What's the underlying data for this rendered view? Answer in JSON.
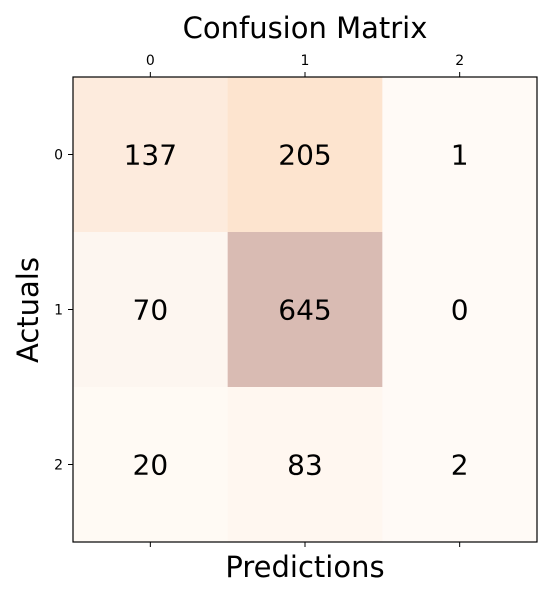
{
  "chart_data": {
    "type": "heatmap",
    "title": "Confusion Matrix",
    "xlabel": "Predictions",
    "ylabel": "Actuals",
    "x_categories": [
      "0",
      "1",
      "2"
    ],
    "y_categories": [
      "0",
      "1",
      "2"
    ],
    "values": [
      [
        137,
        205,
        1
      ],
      [
        70,
        645,
        0
      ],
      [
        20,
        83,
        2
      ]
    ],
    "x_axis_position": "top",
    "grid": false,
    "colormap": "Oranges",
    "alpha": 0.3,
    "cell_colors": [
      [
        "#fdebdd",
        "#fde4cf",
        "#fffaf6"
      ],
      [
        "#fdf6f0",
        "#d9bbb3",
        "#fffaf6"
      ],
      [
        "#fffaf4",
        "#fff7f0",
        "#fffaf6"
      ]
    ]
  }
}
